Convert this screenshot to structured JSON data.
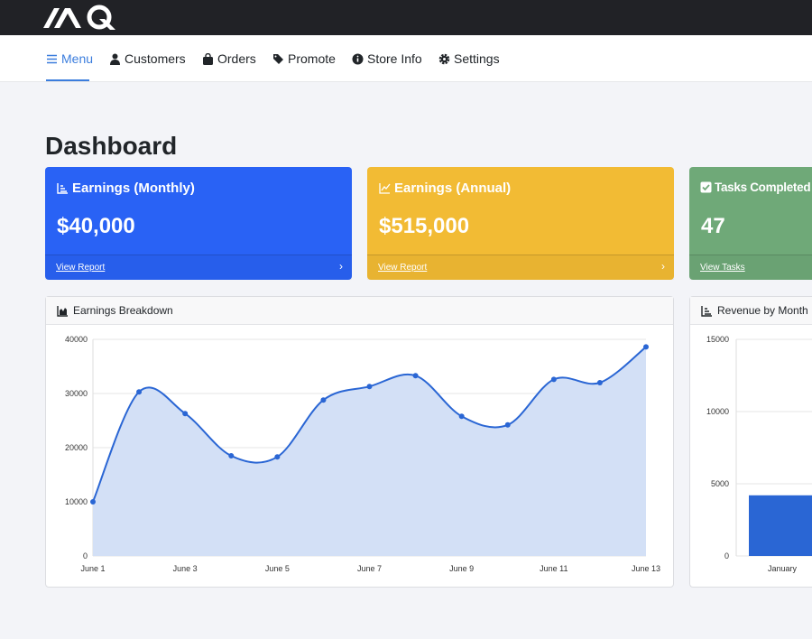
{
  "brand": {
    "logo": "AQ"
  },
  "nav": {
    "items": [
      {
        "label": "Menu",
        "icon": "bars-icon",
        "active": true
      },
      {
        "label": "Customers",
        "icon": "user-icon"
      },
      {
        "label": "Orders",
        "icon": "shopping-bag-icon"
      },
      {
        "label": "Promote",
        "icon": "tag-icon"
      },
      {
        "label": "Store Info",
        "icon": "info-circle-icon"
      },
      {
        "label": "Settings",
        "icon": "gear-icon"
      }
    ]
  },
  "page_title": "Dashboard",
  "cards": [
    {
      "title": "Earnings (Monthly)",
      "icon": "bar-chart-icon",
      "value": "$40,000",
      "link": "View Report",
      "color": "#2962f5"
    },
    {
      "title": "Earnings (Annual)",
      "icon": "line-chart-icon",
      "value": "$515,000",
      "link": "View Report",
      "color": "#f2bb34"
    },
    {
      "title": "Tasks Completed",
      "icon": "check-square-icon",
      "value": "47",
      "link": "View Tasks",
      "color": "#6fa978"
    }
  ],
  "panels": {
    "earnings": "Earnings Breakdown",
    "revenue": "Revenue by Month"
  },
  "chart_data": [
    {
      "type": "area",
      "title": "Earnings Breakdown",
      "x": [
        "June 1",
        "June 2",
        "June 3",
        "June 4",
        "June 5",
        "June 6",
        "June 7",
        "June 8",
        "June 9",
        "June 10",
        "June 11",
        "June 12",
        "June 13"
      ],
      "x_tick_labels": [
        "June 1",
        "June 3",
        "June 5",
        "June 7",
        "June 9",
        "June 11",
        "June 13"
      ],
      "values": [
        10000,
        30300,
        26300,
        18500,
        18300,
        28800,
        31300,
        33300,
        25800,
        24200,
        32600,
        32000,
        38600
      ],
      "ylim": [
        0,
        40000
      ],
      "y_ticks": [
        "0",
        "10000",
        "20000",
        "30000",
        "40000"
      ],
      "grid": true,
      "color": "#2a66d4",
      "fill": "#d3e0f6"
    },
    {
      "type": "bar",
      "title": "Revenue by Month",
      "categories": [
        "January"
      ],
      "values": [
        4200
      ],
      "ylim": [
        0,
        15000
      ],
      "y_ticks": [
        "0",
        "5000",
        "10000",
        "15000"
      ],
      "grid": true,
      "color": "#2a66d4"
    }
  ]
}
